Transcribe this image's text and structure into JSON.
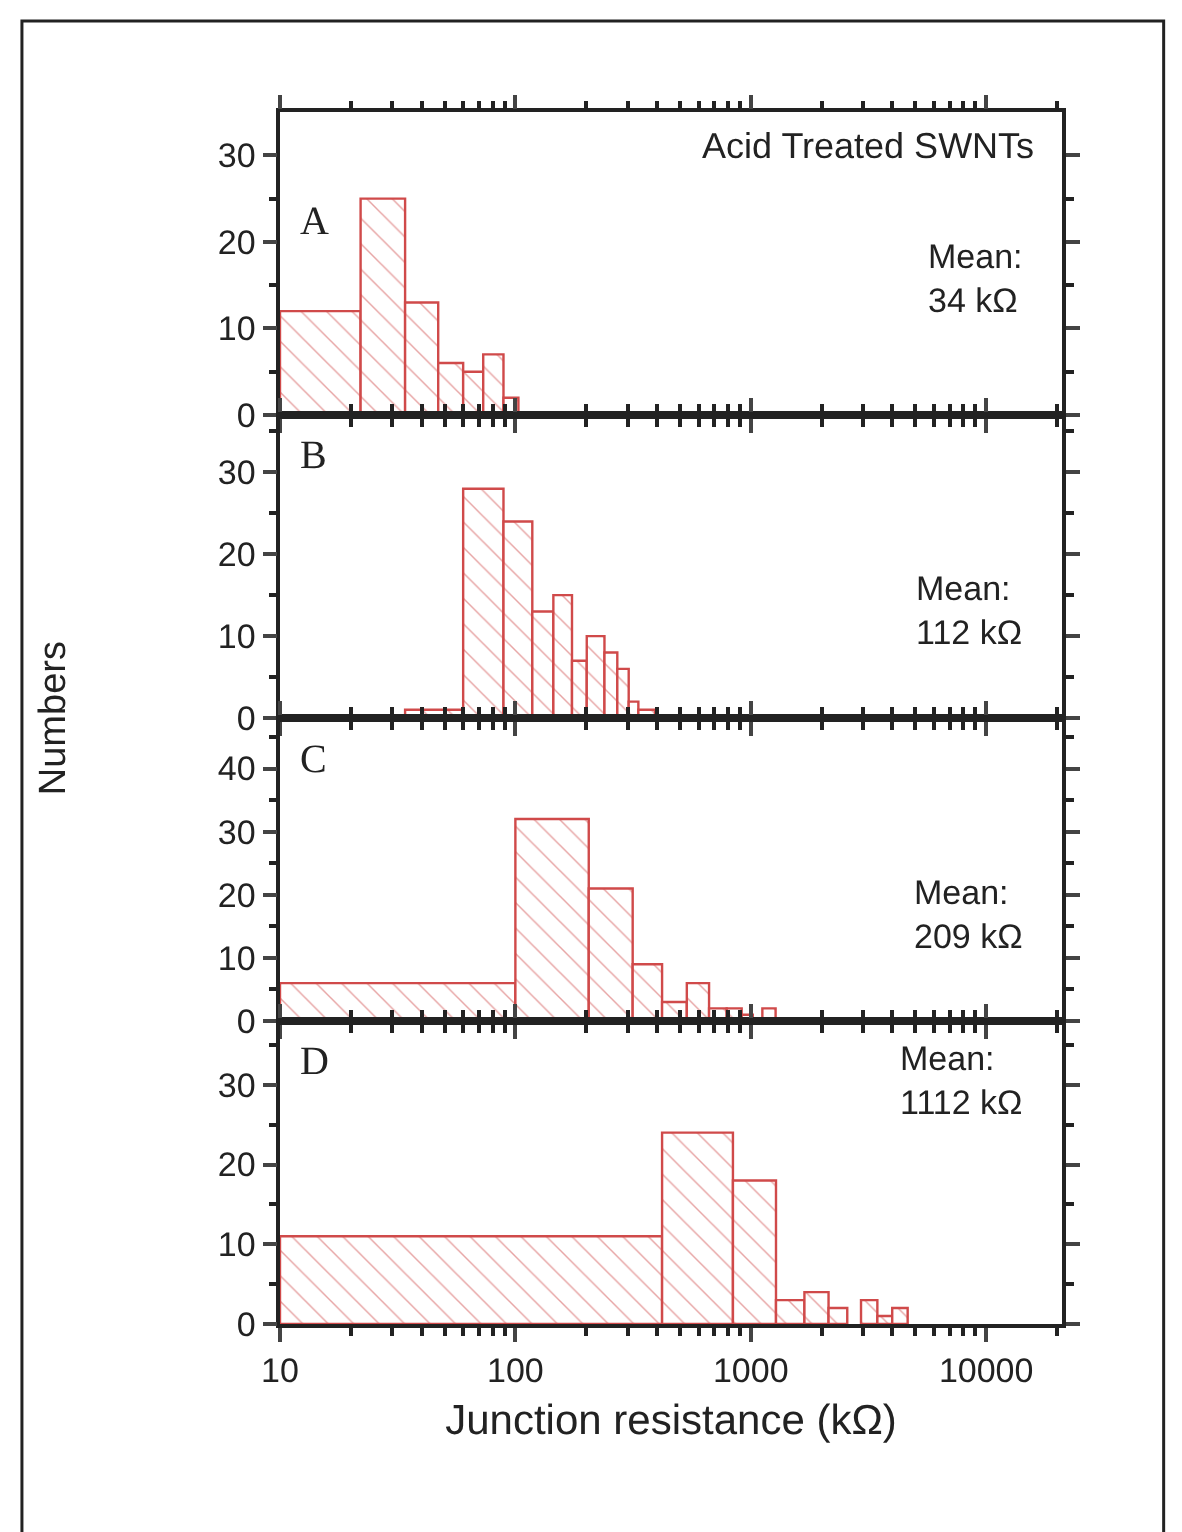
{
  "chart_data": [
    {
      "type": "histogram",
      "title": "Acid Treated SWNTs",
      "bins": [
        10,
        22,
        34,
        47,
        60,
        73,
        89,
        103
      ],
      "values": [
        12,
        25,
        13,
        6,
        5,
        7,
        2
      ],
      "color": "#d04a4a",
      "xlim": [
        10,
        21000
      ],
      "xticks": [
        10,
        100,
        1000,
        10000
      ],
      "ylim": [
        0,
        35
      ],
      "yticks": [
        0,
        10,
        20,
        30
      ],
      "log": "x",
      "tick_labels": "y",
      "annotations": [
        "A",
        "Mean:\n34 kΩ"
      ]
    },
    {
      "type": "histogram",
      "bins": [
        34,
        60,
        89,
        118,
        145,
        174,
        201,
        239,
        271,
        303,
        333,
        392
      ],
      "values": [
        1,
        28,
        24,
        13,
        15,
        7,
        10,
        8,
        6,
        2,
        1
      ],
      "color": "#d04a4a",
      "xlim": [
        10,
        21000
      ],
      "xticks": [
        10,
        100,
        1000,
        10000
      ],
      "ylim": [
        0,
        37
      ],
      "yticks": [
        0,
        10,
        20,
        30
      ],
      "log": "x",
      "tick_labels": "y",
      "ylabel": "Numbers",
      "annotations": [
        "B",
        "Mean:\n112 kΩ"
      ]
    },
    {
      "type": "histogram",
      "bins": [
        10,
        100,
        205,
        315,
        420,
        535,
        665,
        790,
        915,
        1020,
        1120,
        1275
      ],
      "values": [
        6,
        32,
        21,
        9,
        3,
        6,
        2,
        2,
        1,
        0,
        2
      ],
      "color": "#d04a4a",
      "xlim": [
        10,
        21000
      ],
      "xticks": [
        10,
        100,
        1000,
        10000
      ],
      "ylim": [
        0,
        48
      ],
      "yticks": [
        0,
        10,
        20,
        30,
        40
      ],
      "log": "x",
      "tick_labels": "y",
      "annotations": [
        "C",
        "Mean:\n209 kΩ"
      ]
    },
    {
      "type": "histogram",
      "bins": [
        10,
        420,
        840,
        1280,
        1690,
        2140,
        2570,
        2940,
        3450,
        3990,
        4640
      ],
      "values": [
        11,
        24,
        18,
        3,
        4,
        2,
        0,
        3,
        1,
        2
      ],
      "color": "#d04a4a",
      "xlim": [
        10,
        21000
      ],
      "xticks": [
        10,
        100,
        1000,
        10000
      ],
      "ylim": [
        0,
        38
      ],
      "yticks": [
        0,
        10,
        20,
        30
      ],
      "log": "x",
      "xlabel": "Junction resistance (kΩ)",
      "annotations": [
        "D",
        "Mean:\n1112 kΩ"
      ]
    }
  ]
}
